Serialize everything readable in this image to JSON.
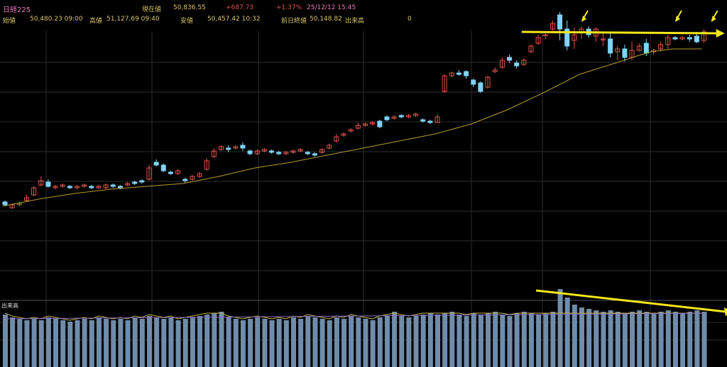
{
  "header": {
    "symbol": "日経225",
    "current_label": "現在値",
    "current_value": "50,836.55",
    "change": "+687.73",
    "change_pct": "+1.37%",
    "datetime": "25/12/12  15:45",
    "open_label": "始値",
    "open_value": "50,480.23 09:00",
    "high_label": "高値",
    "high_value": "51,127.69 09:40",
    "low_label": "安値",
    "low_value": "50,457.42 10:32",
    "prev_close_label": "前日終値",
    "prev_close_value": "50,148.82",
    "volume_label": "出来高",
    "volume_value": "0"
  },
  "volume_panel": {
    "label": "出来高"
  },
  "colors": {
    "up": "#e0524a",
    "down": "#7fd3f7",
    "ma": "#b59a2e",
    "volume_bar": "#6f8caa",
    "trendline": "#f5e61a",
    "grid": "#2e2e2e"
  },
  "chart_data": {
    "type": "candlestick",
    "panels": [
      "price",
      "volume"
    ],
    "grid": true,
    "price_scale": {
      "ylim": [
        0,
        100
      ]
    },
    "volume_scale": {
      "ylim": [
        0,
        100
      ]
    },
    "candles": [
      [
        0,
        50,
        48,
        51,
        47
      ],
      [
        1,
        46,
        48,
        49,
        45
      ],
      [
        2,
        48,
        49,
        50,
        47
      ],
      [
        3,
        51,
        53,
        55,
        50
      ],
      [
        4,
        55,
        60,
        61,
        54
      ],
      [
        5,
        62,
        65,
        68,
        61
      ],
      [
        6,
        64,
        61,
        66,
        60
      ],
      [
        7,
        60,
        61,
        62,
        59
      ],
      [
        8,
        61,
        62,
        63,
        60
      ],
      [
        9,
        61,
        60,
        62,
        59
      ],
      [
        10,
        60,
        61,
        62,
        59
      ],
      [
        11,
        61,
        62,
        63,
        60
      ],
      [
        12,
        61,
        60,
        62,
        59
      ],
      [
        13,
        60,
        61,
        62,
        59
      ],
      [
        14,
        60,
        62,
        63,
        59
      ],
      [
        15,
        62,
        61,
        63,
        60
      ],
      [
        16,
        61,
        60,
        62,
        59
      ],
      [
        17,
        62,
        63,
        64,
        61
      ],
      [
        18,
        64,
        63,
        65,
        62
      ],
      [
        19,
        65,
        64,
        66,
        63
      ],
      [
        20,
        66,
        74,
        76,
        65
      ],
      [
        21,
        78,
        76,
        80,
        75
      ],
      [
        22,
        76,
        72,
        77,
        71
      ],
      [
        23,
        71,
        70,
        72,
        69
      ],
      [
        24,
        70,
        72,
        73,
        69
      ],
      [
        25,
        66,
        65,
        67,
        63
      ],
      [
        26,
        66,
        68,
        69,
        65
      ],
      [
        27,
        68,
        70,
        71,
        67
      ],
      [
        28,
        73,
        79,
        81,
        72
      ],
      [
        29,
        82,
        86,
        88,
        81
      ],
      [
        30,
        87,
        89,
        90,
        86
      ],
      [
        31,
        88,
        87,
        90,
        85
      ],
      [
        32,
        88,
        89,
        90,
        87
      ],
      [
        33,
        90,
        88,
        92,
        86
      ],
      [
        34,
        86,
        84,
        87,
        83
      ],
      [
        35,
        84,
        86,
        87,
        83
      ],
      [
        36,
        86,
        87,
        88,
        85
      ],
      [
        37,
        86,
        85,
        87,
        84
      ],
      [
        38,
        85,
        84,
        86,
        83
      ],
      [
        39,
        84,
        85,
        86,
        83
      ],
      [
        40,
        85,
        86,
        87,
        84
      ],
      [
        41,
        86,
        87,
        88,
        85
      ],
      [
        42,
        85,
        84,
        86,
        83
      ],
      [
        43,
        84,
        83,
        85,
        82
      ],
      [
        44,
        85,
        87,
        88,
        84
      ],
      [
        45,
        88,
        90,
        91,
        87
      ],
      [
        46,
        93,
        96,
        98,
        92
      ],
      [
        47,
        97,
        98,
        99,
        96
      ],
      [
        48,
        100,
        101,
        102,
        99
      ],
      [
        49,
        102,
        104,
        106,
        101
      ],
      [
        50,
        104,
        105,
        106,
        103
      ],
      [
        51,
        105,
        106,
        107,
        104
      ],
      [
        52,
        107,
        103,
        108,
        102
      ],
      [
        53,
        110,
        108,
        111,
        107
      ],
      [
        54,
        109,
        110,
        111,
        108
      ],
      [
        55,
        111,
        110,
        112,
        109
      ],
      [
        56,
        110,
        111,
        112,
        109
      ],
      [
        57,
        111,
        112,
        113,
        110
      ],
      [
        58,
        108,
        107,
        109,
        106
      ],
      [
        59,
        107,
        106,
        108,
        105
      ],
      [
        60,
        106,
        110,
        112,
        106
      ],
      [
        61,
        128,
        139,
        140,
        127
      ],
      [
        62,
        139,
        141,
        142,
        138
      ],
      [
        63,
        141,
        140,
        143,
        139
      ],
      [
        64,
        142,
        139,
        143,
        137
      ],
      [
        65,
        136,
        133,
        137,
        131
      ],
      [
        66,
        134,
        128,
        135,
        127
      ],
      [
        67,
        131,
        138,
        139,
        130
      ],
      [
        68,
        142,
        143,
        145,
        141
      ],
      [
        69,
        145,
        150,
        152,
        144
      ],
      [
        70,
        152,
        150,
        154,
        148
      ],
      [
        71,
        148,
        146,
        150,
        144
      ],
      [
        72,
        147,
        150,
        151,
        146
      ],
      [
        73,
        156,
        160,
        161,
        155
      ],
      [
        74,
        162,
        166,
        168,
        161
      ],
      [
        75,
        168,
        168,
        169,
        165
      ],
      [
        76,
        172,
        176,
        178,
        171
      ],
      [
        77,
        182,
        172,
        184,
        164
      ],
      [
        78,
        172,
        160,
        178,
        157
      ],
      [
        79,
        164,
        168,
        173,
        158
      ],
      [
        80,
        170,
        172,
        174,
        165
      ],
      [
        81,
        172,
        168,
        174,
        166
      ],
      [
        82,
        167,
        172,
        173,
        163
      ],
      [
        83,
        165,
        165,
        170,
        160
      ],
      [
        84,
        165,
        155,
        170,
        152
      ],
      [
        85,
        156,
        158,
        160,
        150
      ],
      [
        86,
        158,
        152,
        161,
        149
      ],
      [
        87,
        152,
        157,
        163,
        150
      ],
      [
        88,
        157,
        160,
        162,
        156
      ],
      [
        89,
        162,
        155,
        165,
        153
      ],
      [
        90,
        156,
        157,
        158,
        154
      ],
      [
        91,
        158,
        161,
        163,
        156
      ],
      [
        92,
        161,
        166,
        168,
        158
      ],
      [
        93,
        166,
        165,
        167,
        164
      ],
      [
        94,
        165,
        166,
        167,
        164
      ],
      [
        95,
        166,
        165,
        168,
        163
      ],
      [
        96,
        167,
        163,
        170,
        162
      ],
      [
        97,
        164,
        170,
        172,
        162
      ]
    ],
    "ma_line": [
      [
        0,
        47
      ],
      [
        5,
        52
      ],
      [
        10,
        56
      ],
      [
        15,
        59
      ],
      [
        20,
        61
      ],
      [
        25,
        63
      ],
      [
        30,
        68
      ],
      [
        35,
        74
      ],
      [
        40,
        78
      ],
      [
        45,
        83
      ],
      [
        50,
        88
      ],
      [
        55,
        93
      ],
      [
        60,
        98
      ],
      [
        65,
        105
      ],
      [
        70,
        115
      ],
      [
        75,
        127
      ],
      [
        80,
        140
      ],
      [
        85,
        148
      ],
      [
        88,
        153
      ],
      [
        90,
        156
      ],
      [
        93,
        158
      ],
      [
        97,
        158
      ]
    ],
    "price_trendline": [
      [
        72,
        170
      ],
      [
        98,
        169
      ]
    ],
    "volume": [
      28,
      26,
      25,
      24,
      25,
      24,
      26,
      25,
      24,
      23,
      24,
      25,
      24,
      26,
      25,
      24,
      25,
      24,
      26,
      25,
      27,
      26,
      25,
      26,
      24,
      25,
      26,
      27,
      28,
      29,
      30,
      26,
      25,
      24,
      25,
      26,
      25,
      24,
      25,
      24,
      26,
      25,
      27,
      26,
      25,
      24,
      26,
      25,
      27,
      26,
      25,
      24,
      26,
      27,
      30,
      27,
      26,
      27,
      28,
      29,
      28,
      29,
      30,
      28,
      27,
      29,
      28,
      29,
      30,
      28,
      27,
      29,
      30,
      29,
      28,
      29,
      30,
      46,
      40,
      35,
      33,
      32,
      31,
      30,
      31,
      30,
      29,
      30,
      31,
      30,
      29,
      30,
      31,
      30,
      29,
      30,
      31,
      30
    ],
    "volume_trendline": [
      [
        74,
        45
      ],
      [
        99,
        30
      ]
    ]
  }
}
